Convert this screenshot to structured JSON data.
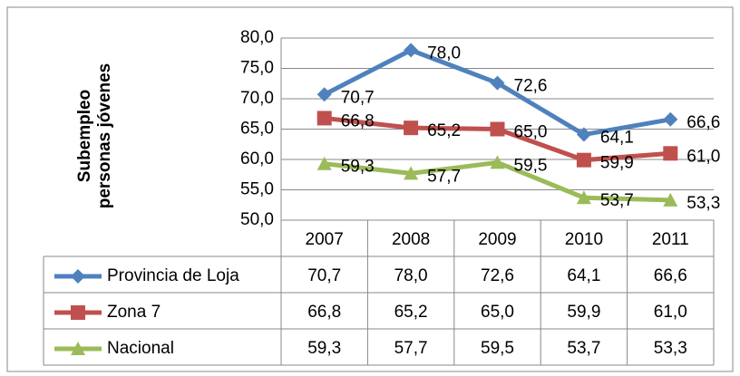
{
  "chart_data": {
    "type": "line",
    "y_label": "Subempleo personas jóvenes",
    "categories": [
      "2007",
      "2008",
      "2009",
      "2010",
      "2011"
    ],
    "series": [
      {
        "name": "Provincia de Loja",
        "color": "#4f81bd",
        "marker": "diamond",
        "values": [
          70.7,
          78.0,
          72.6,
          64.1,
          66.6
        ],
        "value_labels": [
          "70,7",
          "78,0",
          "72,6",
          "64,1",
          "66,6"
        ]
      },
      {
        "name": "Zona 7",
        "color": "#c0504d",
        "marker": "square",
        "values": [
          66.8,
          65.2,
          65.0,
          59.9,
          61.0
        ],
        "value_labels": [
          "66,8",
          "65,2",
          "65,0",
          "59,9",
          "61,0"
        ]
      },
      {
        "name": "Nacional",
        "color": "#9bbb59",
        "marker": "triangle",
        "values": [
          59.3,
          57.7,
          59.5,
          53.7,
          53.3
        ],
        "value_labels": [
          "59,3",
          "57,7",
          "59,5",
          "53,7",
          "53,3"
        ]
      }
    ],
    "ylim": [
      50,
      80
    ],
    "yticks": [
      {
        "value": 50,
        "label": "50,0"
      },
      {
        "value": 55,
        "label": "55,0"
      },
      {
        "value": 60,
        "label": "60,0"
      },
      {
        "value": 65,
        "label": "65,0"
      },
      {
        "value": 70,
        "label": "70,0"
      },
      {
        "value": 75,
        "label": "75,0"
      },
      {
        "value": 80,
        "label": "80,0"
      }
    ],
    "grid": true,
    "data_table": true
  }
}
